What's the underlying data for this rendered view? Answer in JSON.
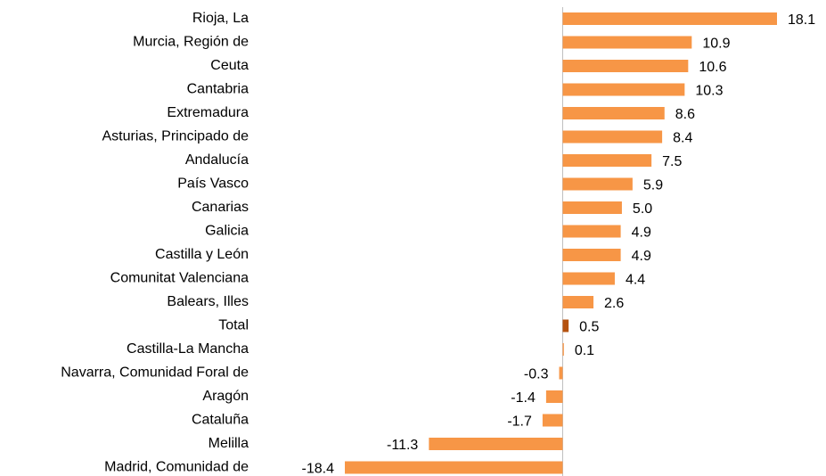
{
  "chart_data": {
    "type": "barh",
    "categories": [
      "Rioja, La",
      "Murcia, Región de",
      "Ceuta",
      "Cantabria",
      "Extremadura",
      "Asturias, Principado de",
      "Andalucía",
      "País Vasco",
      "Canarias",
      "Galicia",
      "Castilla y León",
      "Comunitat Valenciana",
      "Balears, Illes",
      "Total",
      "Castilla-La Mancha",
      "Navarra, Comunidad Foral de",
      "Aragón",
      "Cataluña",
      "Melilla",
      "Madrid, Comunidad de"
    ],
    "values": [
      18.1,
      10.9,
      10.6,
      10.3,
      8.6,
      8.4,
      7.5,
      5.9,
      5.0,
      4.9,
      4.9,
      4.4,
      2.6,
      0.5,
      0.1,
      -0.3,
      -1.4,
      -1.7,
      -11.3,
      -18.4
    ],
    "value_labels": [
      "18.1",
      "10.9",
      "10.6",
      "10.3",
      "8.6",
      "8.4",
      "7.5",
      "5.9",
      "5.0",
      "4.9",
      "4.9",
      "4.4",
      "2.6",
      "0.5",
      "0.1",
      "-0.3",
      "-1.4",
      "-1.7",
      "-11.3",
      "-18.4"
    ],
    "colors": [
      "#f79646",
      "#f79646",
      "#f79646",
      "#f79646",
      "#f79646",
      "#f79646",
      "#f79646",
      "#f79646",
      "#f79646",
      "#f79646",
      "#f79646",
      "#f79646",
      "#f79646",
      "#b5520f",
      "#f79646",
      "#f79646",
      "#f79646",
      "#f79646",
      "#f79646",
      "#f79646"
    ],
    "xlim": [
      -18.4,
      18.1
    ]
  }
}
